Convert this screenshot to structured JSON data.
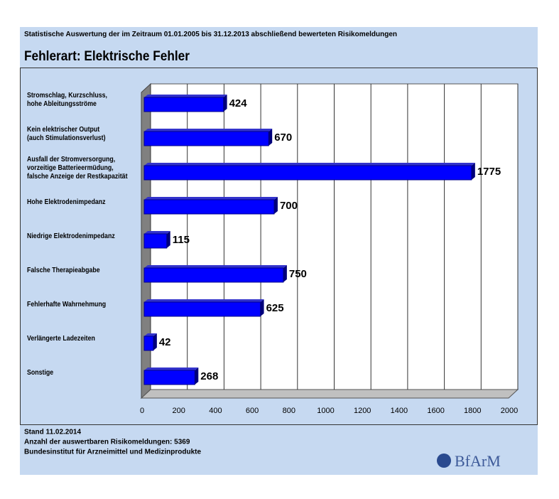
{
  "chart_data": {
    "type": "bar",
    "orientation": "horizontal",
    "subtitle": "Statistische Auswertung der im Zeitraum 01.01.2005 bis 31.12.2013 abschließend bewerteten Risikomeldungen",
    "title": "Fehlerart: Elektrische Fehler",
    "categories": [
      "Stromschlag, Kurzschluss,\nhohe Ableitungsströme",
      "Kein elektrischer Output\n(auch Stimulationsverlust)",
      "Ausfall der Stromversorgung,\nvorzeitige Batterieermüdung,\nfalsche Anzeige der Restkapazität",
      "Hohe Elektrodenimpedanz",
      "Niedrige Elektrodenimpedanz",
      "Falsche Therapieabgabe",
      "Fehlerhafte Wahrnehmung",
      "Verlängerte Ladezeiten",
      "Sonstige"
    ],
    "values": [
      424,
      670,
      1775,
      700,
      115,
      750,
      625,
      42,
      268
    ],
    "color": "#0000ff",
    "xlim": [
      0,
      2000
    ],
    "xticks": [
      0,
      200,
      400,
      600,
      800,
      1000,
      1200,
      1400,
      1600,
      1800,
      2000
    ],
    "grid": true,
    "footer": [
      "Stand 11.02.2014",
      "Anzahl der auswertbaren Risikomeldungen: 5369",
      "Bundesinstitut für Arzneimittel und Medizinprodukte"
    ],
    "logo": "BfArM"
  }
}
